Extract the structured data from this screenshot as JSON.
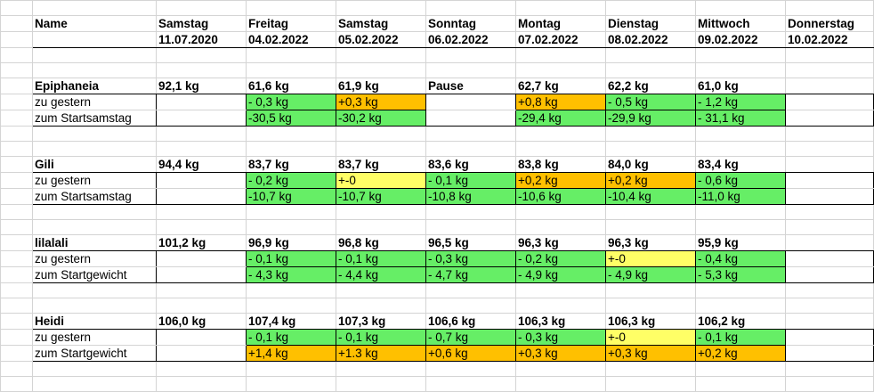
{
  "colors": {
    "green": "#66ee66",
    "orange": "#ffc000",
    "yellow": "#ffff66"
  },
  "header": {
    "name_label": "Name",
    "days": [
      {
        "weekday": "Samstag",
        "date": "11.07.2020"
      },
      {
        "weekday": "Freitag",
        "date": "04.02.2022"
      },
      {
        "weekday": "Samstag",
        "date": "05.02.2022"
      },
      {
        "weekday": "Sonntag",
        "date": "06.02.2022"
      },
      {
        "weekday": "Montag",
        "date": "07.02.2022"
      },
      {
        "weekday": "Dienstag",
        "date": "08.02.2022"
      },
      {
        "weekday": "Mittwoch",
        "date": "09.02.2022"
      },
      {
        "weekday": "Donnerstag",
        "date": "10.02.2022"
      }
    ]
  },
  "persons": [
    {
      "name": "Epiphaneia",
      "weights": [
        "92,1 kg",
        "61,6 kg",
        "61,9 kg",
        "Pause",
        "62,7 kg",
        "62,2 kg",
        "61,0 kg",
        ""
      ],
      "rows": [
        {
          "label": "zu gestern",
          "values": [
            "",
            "- 0,3 kg",
            "+0,3 kg",
            "",
            "+0,8 kg",
            "- 0,5 kg",
            "- 1,2 kg",
            ""
          ],
          "colors": [
            "",
            "green",
            "orange",
            "",
            "orange",
            "green",
            "green",
            ""
          ]
        },
        {
          "label": "zum Startsamstag",
          "values": [
            "",
            "-30,5 kg",
            "-30,2 kg",
            "",
            "-29,4 kg",
            "-29,9 kg",
            "- 31,1 kg",
            ""
          ],
          "colors": [
            "",
            "green",
            "green",
            "",
            "green",
            "green",
            "green",
            ""
          ]
        }
      ]
    },
    {
      "name": "Gili",
      "weights": [
        "94,4 kg",
        "83,7 kg",
        "83,7 kg",
        "83,6 kg",
        "83,8 kg",
        "84,0 kg",
        "83,4 kg",
        ""
      ],
      "rows": [
        {
          "label": "zu gestern",
          "values": [
            "",
            "- 0,2 kg",
            "+-0",
            "- 0,1 kg",
            "+0,2 kg",
            "+0,2 kg",
            "- 0,6 kg",
            ""
          ],
          "colors": [
            "",
            "green",
            "yellow",
            "green",
            "orange",
            "orange",
            "green",
            ""
          ]
        },
        {
          "label": "zum Startsamstag",
          "values": [
            "",
            "-10,7 kg",
            "-10,7 kg",
            "-10,8 kg",
            "-10,6 kg",
            "-10,4 kg",
            "-11,0 kg",
            ""
          ],
          "colors": [
            "",
            "green",
            "green",
            "green",
            "green",
            "green",
            "green",
            ""
          ]
        }
      ]
    },
    {
      "name": "lilalali",
      "weights": [
        "101,2 kg",
        "96,9 kg",
        "96,8 kg",
        "96,5 kg",
        "96,3 kg",
        "96,3 kg",
        "95,9 kg",
        ""
      ],
      "rows": [
        {
          "label": "zu gestern",
          "values": [
            "",
            "- 0,1 kg",
            "- 0,1 kg",
            "- 0,3 kg",
            "- 0,2 kg",
            "+-0",
            "- 0,4 kg",
            ""
          ],
          "colors": [
            "",
            "green",
            "green",
            "green",
            "green",
            "yellow",
            "green",
            ""
          ]
        },
        {
          "label": "zum Startgewicht",
          "values": [
            "",
            "- 4,3 kg",
            "- 4,4 kg",
            "- 4,7 kg",
            "- 4,9 kg",
            "- 4,9 kg",
            "- 5,3 kg",
            ""
          ],
          "colors": [
            "",
            "green",
            "green",
            "green",
            "green",
            "green",
            "green",
            ""
          ]
        }
      ]
    },
    {
      "name": "Heidi",
      "weights": [
        "106,0 kg",
        "107,4 kg",
        "107,3 kg",
        "106,6 kg",
        "106,3 kg",
        "106,3 kg",
        "106,2 kg",
        ""
      ],
      "rows": [
        {
          "label": "zu gestern",
          "values": [
            "",
            "- 0,1 kg",
            "- 0,1 kg",
            "- 0,7 kg",
            "- 0,3 kg",
            "+-0",
            "- 0,1 kg",
            ""
          ],
          "colors": [
            "",
            "green",
            "green",
            "green",
            "green",
            "yellow",
            "green",
            ""
          ]
        },
        {
          "label": "zum Startgewicht",
          "values": [
            "",
            "+1,4 kg",
            "+1.3 kg",
            "+0,6 kg",
            "+0,3 kg",
            "+0,3 kg",
            "+0,2 kg",
            ""
          ],
          "colors": [
            "",
            "orange",
            "orange",
            "orange",
            "orange",
            "orange",
            "orange",
            ""
          ]
        }
      ]
    }
  ]
}
